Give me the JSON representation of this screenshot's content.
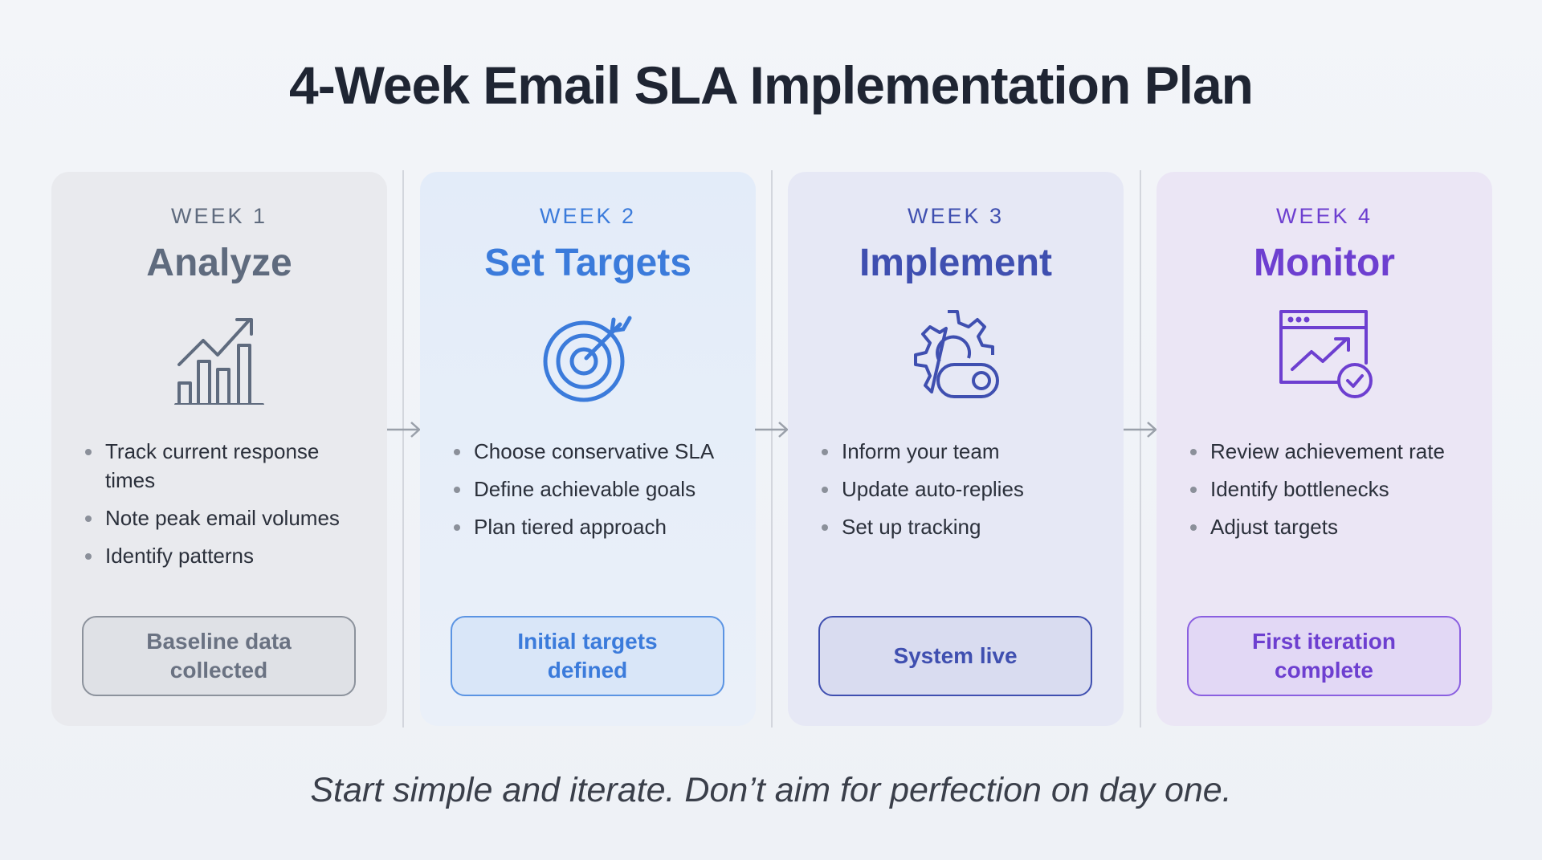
{
  "title": "4-Week Email SLA Implementation Plan",
  "weeks": [
    {
      "label": "WEEK 1",
      "heading": "Analyze",
      "icon": "bar-chart-trend-icon",
      "color": "#5f6b7e",
      "bullets": [
        "Track current response times",
        "Note peak email volumes",
        "Identify patterns"
      ],
      "milestone": "Baseline data collected"
    },
    {
      "label": "WEEK 2",
      "heading": "Set Targets",
      "icon": "target-arrow-icon",
      "color": "#3b7bdb",
      "bullets": [
        "Choose conservative SLA",
        "Define achievable goals",
        "Plan tiered approach"
      ],
      "milestone": "Initial targets defined"
    },
    {
      "label": "WEEK 3",
      "heading": "Implement",
      "icon": "gear-toggle-icon",
      "color": "#3f4fb0",
      "bullets": [
        "Inform your team",
        "Update auto-replies",
        "Set up tracking"
      ],
      "milestone": "System live"
    },
    {
      "label": "WEEK 4",
      "heading": "Monitor",
      "icon": "dashboard-check-icon",
      "color": "#6d3fd0",
      "bullets": [
        "Review achievement rate",
        "Identify bottlenecks",
        "Adjust targets"
      ],
      "milestone": "First iteration complete"
    }
  ],
  "footer": "Start simple and iterate. Don’t aim for perfection on day one."
}
